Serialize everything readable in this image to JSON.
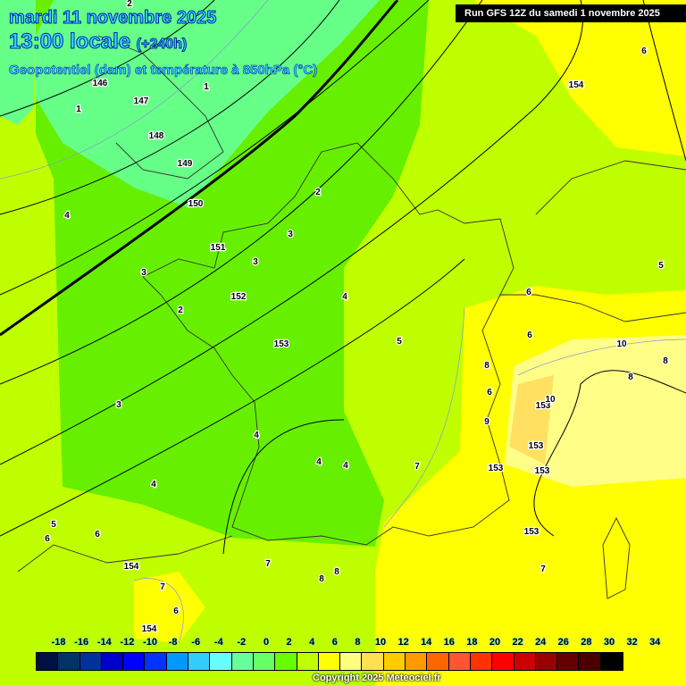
{
  "header": {
    "date": "mardi 11 novembre 2025",
    "time": "13:00 locale",
    "lead": "(+240h)",
    "parameter": "Geopotentiel (dam) et température à 850hPa (°C)",
    "run": "Run GFS 12Z du samedi 1 novembre 2025"
  },
  "legend": {
    "ticks": [
      "-18",
      "-16",
      "-14",
      "-12",
      "-10",
      "-8",
      "-6",
      "-4",
      "-2",
      "0",
      "2",
      "4",
      "6",
      "8",
      "10",
      "12",
      "14",
      "16",
      "18",
      "20",
      "22",
      "24",
      "26",
      "28",
      "30",
      "32",
      "34"
    ],
    "colors": [
      "#001040",
      "#003366",
      "#003399",
      "#0000cc",
      "#0000ff",
      "#0033ff",
      "#0099ff",
      "#33ccff",
      "#66ffff",
      "#66ff99",
      "#66ff66",
      "#66ff00",
      "#c0ff00",
      "#ffff00",
      "#ffff80",
      "#ffe050",
      "#ffcc00",
      "#ff9900",
      "#ff6600",
      "#ff5533",
      "#ff3300",
      "#ff0000",
      "#cc0000",
      "#990000",
      "#660000",
      "#4a0000",
      "#000000"
    ]
  },
  "map_labels": [
    "146",
    "147",
    "148",
    "149",
    "150",
    "151",
    "152",
    "153",
    "154",
    "153",
    "153",
    "153",
    "153",
    "153",
    "154",
    "154",
    "2",
    "2",
    "1",
    "1",
    "3",
    "3",
    "3",
    "2",
    "4",
    "4",
    "5",
    "5",
    "6",
    "6",
    "6",
    "6",
    "7",
    "7",
    "7",
    "8",
    "8",
    "8",
    "9",
    "10",
    "10",
    "4",
    "4",
    "4",
    "4",
    "5",
    "6",
    "6",
    "7",
    "8",
    "6",
    "8",
    "3"
  ],
  "copyright": "Copyright 2025 Meteociel.fr"
}
